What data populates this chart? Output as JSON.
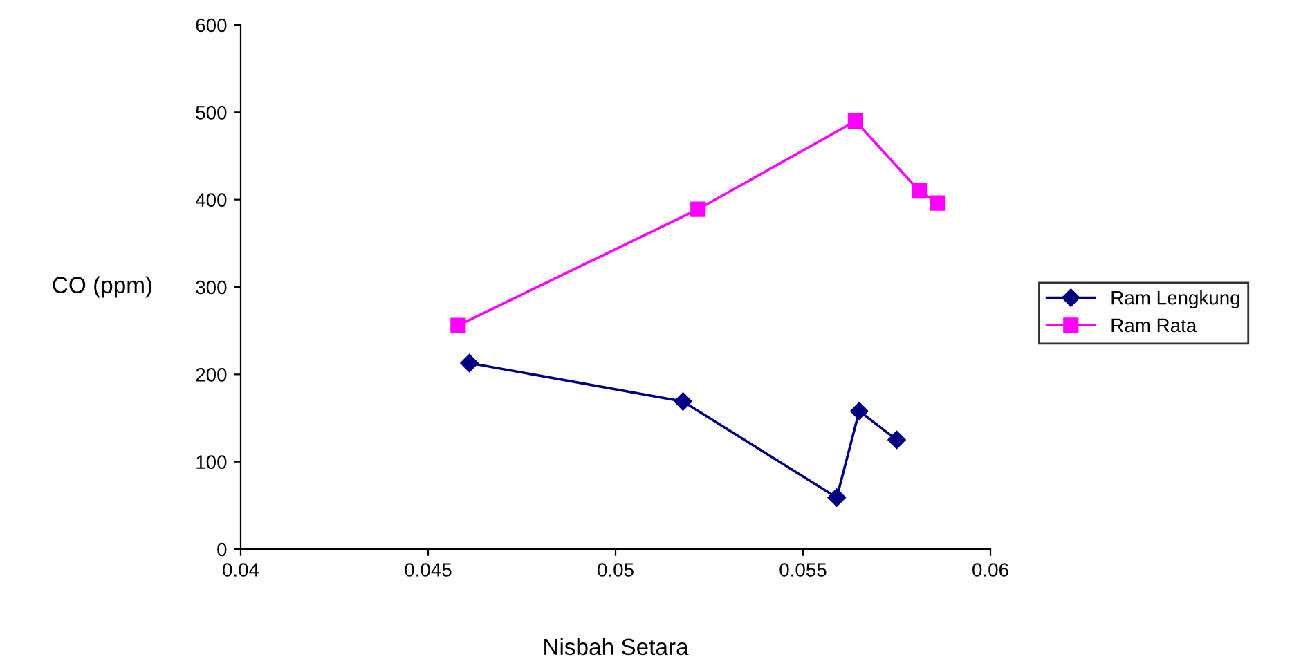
{
  "chart_data": {
    "type": "line",
    "xlabel": "Nisbah Setara",
    "ylabel": "CO (ppm)",
    "xlim": [
      0.04,
      0.06
    ],
    "xticks": [
      0.04,
      0.045,
      0.05,
      0.055,
      0.06
    ],
    "ylim": [
      0,
      600
    ],
    "yticks": [
      0,
      100,
      200,
      300,
      400,
      500,
      600
    ],
    "grid": false,
    "legend": "right",
    "line_style": "solid",
    "series": [
      {
        "name": "Ram Lengkung",
        "color": "#000080",
        "marker": "diamond",
        "x": [
          0.0461,
          0.0518,
          0.0559,
          0.0565,
          0.0575
        ],
        "values": [
          213,
          169,
          59,
          158,
          125
        ]
      },
      {
        "name": "Ram Rata",
        "color": "#ff00ff",
        "marker": "square",
        "x": [
          0.0458,
          0.0522,
          0.0564,
          0.0581,
          0.0586
        ],
        "values": [
          256,
          389,
          490,
          410,
          396
        ]
      }
    ]
  }
}
